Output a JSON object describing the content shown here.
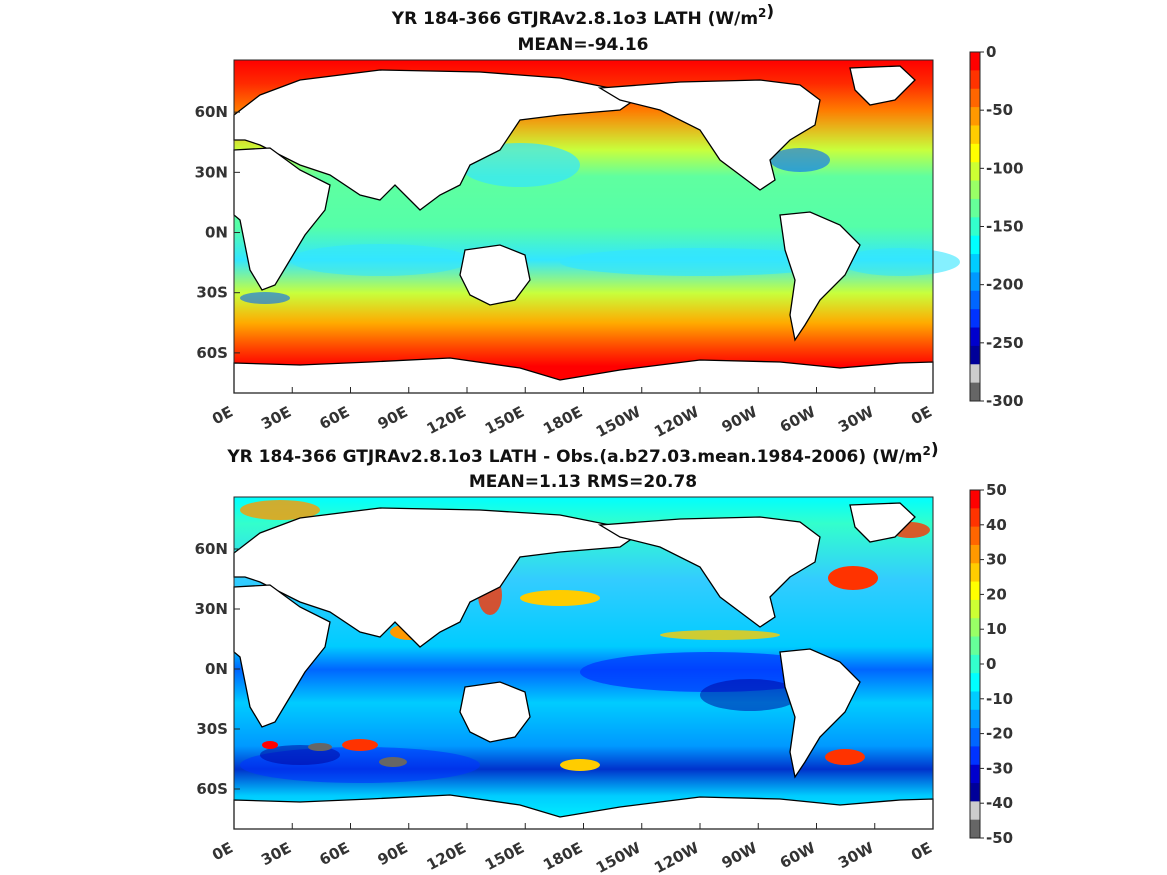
{
  "chart_data": [
    {
      "type": "heatmap",
      "title": "YR 184-366 GTJRAv2.8.1o3  LATH (W/m²)",
      "subtitle": "MEAN=-94.16",
      "x_ticks": [
        "0E",
        "30E",
        "60E",
        "90E",
        "120E",
        "150E",
        "180E",
        "150W",
        "120W",
        "90W",
        "60W",
        "30W",
        "0E"
      ],
      "y_ticks": [
        "60N",
        "30N",
        "0N",
        "30S",
        "60S"
      ],
      "colorbar": {
        "ticks": [
          "0",
          "-50",
          "-100",
          "-150",
          "-200",
          "-250",
          "-300"
        ],
        "range": [
          -300,
          0
        ],
        "colors": [
          "#ff0000",
          "#ff3300",
          "#ff6600",
          "#ff9900",
          "#ffcc00",
          "#ffff00",
          "#ccff33",
          "#99ff66",
          "#66ff99",
          "#33ffcc",
          "#00ffff",
          "#00ccff",
          "#0099ff",
          "#0066ff",
          "#0033ff",
          "#0000cc",
          "#000099",
          "#cccccc",
          "#666666"
        ]
      },
      "mean": -94.16
    },
    {
      "type": "heatmap",
      "title": "YR 184-366 GTJRAv2.8.1o3 LATH - Obs.(a.b27.03.mean.1984-2006) (W/m²)",
      "subtitle": "MEAN=1.13 RMS=20.78",
      "x_ticks": [
        "0E",
        "30E",
        "60E",
        "90E",
        "120E",
        "150E",
        "180E",
        "150W",
        "120W",
        "90W",
        "60W",
        "30W",
        "0E"
      ],
      "y_ticks": [
        "60N",
        "30N",
        "0N",
        "30S",
        "60S"
      ],
      "colorbar": {
        "ticks": [
          "50",
          "40",
          "30",
          "20",
          "10",
          "0",
          "-10",
          "-20",
          "-30",
          "-40",
          "-50"
        ],
        "range": [
          -50,
          50
        ],
        "colors": [
          "#ff0000",
          "#ff3300",
          "#ff6600",
          "#ff9900",
          "#ffcc00",
          "#ffff00",
          "#ccff33",
          "#99ff66",
          "#66ff99",
          "#33ffcc",
          "#00ffff",
          "#00ccff",
          "#0099ff",
          "#0066ff",
          "#0033ff",
          "#0000cc",
          "#000099",
          "#cccccc",
          "#666666"
        ]
      },
      "mean": 1.13,
      "rms": 20.78
    }
  ]
}
